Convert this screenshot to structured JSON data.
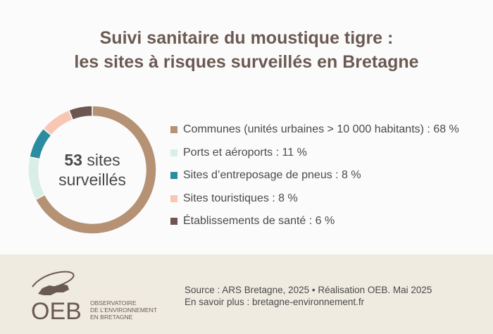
{
  "title": {
    "line1": "Suivi sanitaire du moustique tigre :",
    "line2": "les sites à risques surveillés en Bretagne"
  },
  "center": {
    "number": "53",
    "line1_rest": " sites",
    "line2": "surveillés"
  },
  "chart_data": {
    "type": "pie",
    "variant": "donut",
    "total_sites": 53,
    "categories": [
      "Communes (unités urbaines > 10 000 habitants) : 68 %",
      "Ports et aéroports : 11 %",
      "Sites d’entreposage de pneus : 8 %",
      "Sites touristiques : 8 %",
      "Établissements de santé : 6 %"
    ],
    "values": [
      68,
      11,
      8,
      8,
      6
    ],
    "colors": [
      "#b59274",
      "#d8eee7",
      "#2b8ca0",
      "#f8c7b4",
      "#6d5650"
    ],
    "legend_position": "right"
  },
  "footer": {
    "source": "Source : ARS Bretagne, 2025 • Réalisation OEB. Mai 2025",
    "more": "En savoir plus : bretagne-environnement.fr",
    "logo_text": "OEB",
    "logo_sub1": "OBSERVATOIRE",
    "logo_sub2": "DE L’ENVIRONNEMENT",
    "logo_sub3": "EN BRETAGNE",
    "colors": {
      "bg": "#efebe1",
      "logo": "#6b5a52"
    }
  }
}
